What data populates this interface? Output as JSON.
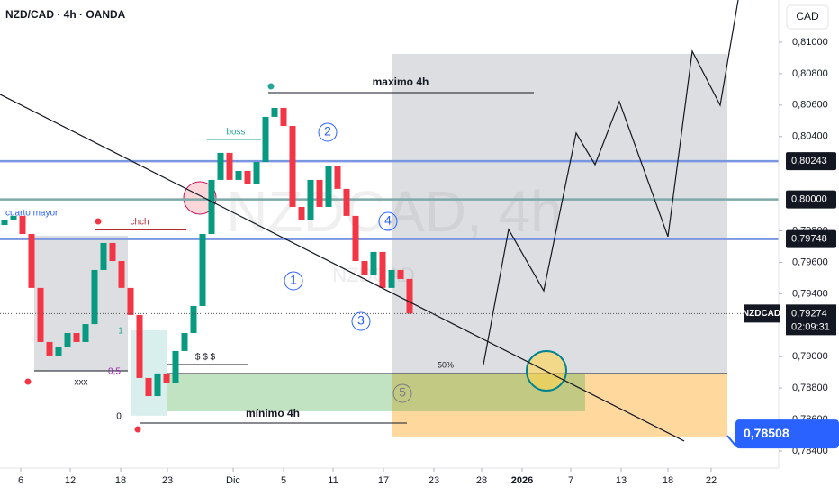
{
  "header": {
    "symbol": "NZD/CAD · 4h · OANDA",
    "currency": "CAD"
  },
  "chart_data": {
    "type": "candlestick",
    "watermark": "NZDCAD, 4h",
    "watermark_sub": "NZDCAD",
    "x": [
      0.5,
      1.5,
      2.5,
      3.5,
      4.5,
      5.5,
      6.5,
      7.5,
      8.5,
      9.5,
      10.5,
      11.5,
      12.5,
      13.5,
      14.5,
      15.5,
      16.5,
      17.5,
      18.5,
      19.5,
      20.5,
      21.5,
      22.5,
      23.5,
      24.5,
      25.5,
      26.5,
      27.5,
      28.5,
      29.5,
      30.5,
      31.5,
      32.5,
      33.5,
      34.5,
      35.5,
      36.5,
      37.5,
      38.5,
      39.5,
      40.5,
      41.5,
      42.5,
      43.5,
      44.5,
      45.5
    ],
    "open": [
      0.79837,
      0.79866,
      0.79895,
      0.7978,
      0.79437,
      0.79093,
      0.79007,
      0.79064,
      0.7915,
      0.79093,
      0.79207,
      0.79551,
      0.79723,
      0.79608,
      0.79437,
      0.79265,
      0.78864,
      0.78749,
      0.78893,
      0.78835,
      0.79036,
      0.7915,
      0.79322,
      0.7978,
      0.80124,
      0.80296,
      0.80124,
      0.80181,
      0.80095,
      0.80238,
      0.80525,
      0.80582,
      0.80467,
      0.79952,
      0.79866,
      0.80124,
      0.79952,
      0.8021,
      0.80067,
      0.79895,
      0.79608,
      0.79522,
      0.79666,
      0.79437,
      0.79551,
      0.79494
    ],
    "close": [
      0.79866,
      0.79895,
      0.7978,
      0.79437,
      0.79093,
      0.79007,
      0.79064,
      0.7915,
      0.79093,
      0.79207,
      0.79551,
      0.79723,
      0.79608,
      0.79437,
      0.79265,
      0.78864,
      0.78749,
      0.78893,
      0.78835,
      0.79036,
      0.7915,
      0.79322,
      0.7978,
      0.80124,
      0.80296,
      0.80124,
      0.80181,
      0.80095,
      0.80238,
      0.80525,
      0.80582,
      0.80467,
      0.79952,
      0.79866,
      0.80124,
      0.79952,
      0.8021,
      0.80067,
      0.79895,
      0.79608,
      0.79522,
      0.79666,
      0.79437,
      0.79551,
      0.79494,
      0.79274
    ],
    "up_color": "#089981",
    "down_color": "#f23645",
    "xlim": [
      0,
      86.5
    ],
    "xticks": [
      {
        "value": 2.3,
        "label": "6"
      },
      {
        "value": 7.8,
        "label": "12"
      },
      {
        "value": 13.4,
        "label": "18"
      },
      {
        "value": 18.6,
        "label": "23"
      },
      {
        "value": 25.9,
        "label": "Dic"
      },
      {
        "value": 31.5,
        "label": "5"
      },
      {
        "value": 37,
        "label": "11"
      },
      {
        "value": 42.6,
        "label": "17"
      },
      {
        "value": 48.2,
        "label": "23"
      },
      {
        "value": 53.5,
        "label": "28"
      },
      {
        "value": 58,
        "label": "2026"
      },
      {
        "value": 63.4,
        "label": "7"
      },
      {
        "value": 69,
        "label": "13"
      },
      {
        "value": 74.2,
        "label": "18"
      },
      {
        "value": 79,
        "label": "22"
      }
    ],
    "ylim": [
      0.78291,
      0.81269
    ],
    "yticks": [
      {
        "value": 0.81,
        "label": "0,81000"
      },
      {
        "value": 0.808,
        "label": "0,80800"
      },
      {
        "value": 0.806,
        "label": "0,80600"
      },
      {
        "value": 0.804,
        "label": "0,80400"
      },
      {
        "value": 0.798,
        "label": "0,79800"
      },
      {
        "value": 0.796,
        "label": "0,79600"
      },
      {
        "value": 0.794,
        "label": "0,79400"
      },
      {
        "value": 0.79,
        "label": "0,79000"
      },
      {
        "value": 0.788,
        "label": "0,78800"
      },
      {
        "value": 0.786,
        "label": "0,78600"
      },
      {
        "value": 0.784,
        "label": "0,78400"
      }
    ],
    "projection": {
      "x": [
        53.7,
        56.5,
        60.4,
        64.0,
        66.1,
        68.8,
        74.2,
        76.9,
        80.0,
        82.0
      ],
      "values": [
        0.7895,
        0.79809,
        0.79419,
        0.80422,
        0.80221,
        0.80622,
        0.79763,
        0.80943,
        0.80599,
        0.81269
      ],
      "color": "#131722"
    },
    "trendline": {
      "x": [
        0,
        76
      ],
      "values": [
        0.80668,
        0.78463
      ],
      "color": "#131722"
    },
    "levels": [
      {
        "value": 0.80243,
        "label": "0,80243",
        "color": "#7b96e0"
      },
      {
        "value": 0.8,
        "label": "0,80000",
        "color": "#7fa8a8"
      },
      {
        "value": 0.79748,
        "label": "0,79748",
        "color": "#7b96e0"
      }
    ],
    "last_price": {
      "name": "NZDCAD",
      "value": 0.79274,
      "label": "0,79274",
      "countdown": "02:09:31"
    },
    "target": {
      "value": 0.78508,
      "label": "0,78508",
      "color": "#2962ff"
    },
    "zones": [
      {
        "x": [
          43.6,
          80.8
        ],
        "ylim": [
          0.78893,
          0.80926
        ],
        "color": "rgba(120,123,134,0.25)"
      },
      {
        "x": [
          43.6,
          80.8
        ],
        "ylim": [
          0.78492,
          0.78893
        ],
        "color": "rgba(255,152,0,0.38)"
      },
      {
        "x": [
          18.6,
          65.0
        ],
        "ylim": [
          0.78652,
          0.78893
        ],
        "color": "rgba(76,175,80,0.35)"
      },
      {
        "x": [
          3.8,
          14.2
        ],
        "ylim": [
          0.7891,
          0.79769
        ],
        "color": "rgba(120,123,134,0.25)"
      },
      {
        "x": [
          14.5,
          18.6
        ],
        "ylim": [
          0.78624,
          0.79167
        ],
        "color": "rgba(0,150,136,0.15)"
      }
    ],
    "annotations": [
      "maximo 4h",
      "mínimo 4h",
      "boss",
      "chch",
      "cuarto mayor",
      "xxx",
      "$ $ $",
      "50%",
      "1",
      "0,5",
      "0",
      "1",
      "2",
      "3",
      "4",
      "5"
    ]
  }
}
